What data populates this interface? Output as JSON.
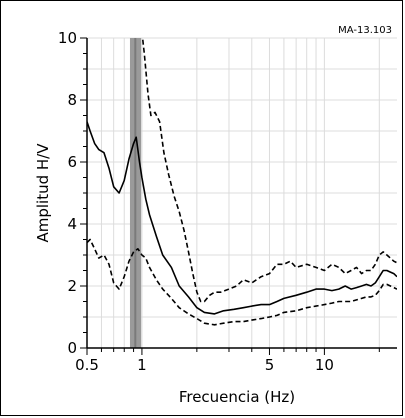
{
  "chart_data": {
    "type": "line",
    "station_label": "MA-13.103",
    "xlabel": "Frecuencia (Hz)",
    "ylabel": "Amplitud H/V",
    "xscale": "log",
    "xlim": [
      0.5,
      25
    ],
    "ylim": [
      0,
      10
    ],
    "x_ticks": [
      {
        "value": 0.5,
        "label": "0.5"
      },
      {
        "value": 1,
        "label": "1"
      },
      {
        "value": 5,
        "label": "5"
      },
      {
        "value": 10,
        "label": "10"
      }
    ],
    "y_ticks": [
      {
        "value": 0,
        "label": "0"
      },
      {
        "value": 2,
        "label": "2"
      },
      {
        "value": 4,
        "label": "4"
      },
      {
        "value": 6,
        "label": "6"
      },
      {
        "value": 8,
        "label": "8"
      },
      {
        "value": 10,
        "label": "10"
      }
    ],
    "grid": true,
    "peak_band": {
      "x_center": 0.92,
      "x_min": 0.86,
      "x_max": 0.99
    },
    "colors": {
      "mean": "#000000",
      "std": "#000000",
      "band": "#9a9a9a",
      "band_center": "#7a7a7a",
      "grid": "#dcdcdc"
    },
    "series": [
      {
        "style": "solid",
        "x": [
          0.5,
          0.52,
          0.55,
          0.58,
          0.62,
          0.66,
          0.7,
          0.75,
          0.8,
          0.85,
          0.9,
          0.93,
          0.97,
          1.0,
          1.05,
          1.1,
          1.2,
          1.3,
          1.45,
          1.6,
          1.8,
          2.0,
          2.2,
          2.5,
          2.8,
          3.2,
          3.6,
          4.0,
          4.5,
          5.0,
          5.5,
          6.0,
          7.0,
          8.0,
          9.0,
          10,
          11,
          12,
          13,
          14,
          15,
          16,
          17,
          18,
          19,
          20,
          21,
          22,
          23,
          24,
          25
        ],
        "y": [
          7.3,
          7.0,
          6.6,
          6.4,
          6.3,
          5.8,
          5.2,
          5.0,
          5.4,
          6.1,
          6.6,
          6.8,
          6.0,
          5.5,
          4.8,
          4.3,
          3.6,
          3.0,
          2.6,
          2.0,
          1.65,
          1.3,
          1.15,
          1.1,
          1.2,
          1.25,
          1.3,
          1.35,
          1.4,
          1.4,
          1.5,
          1.6,
          1.7,
          1.8,
          1.9,
          1.9,
          1.85,
          1.9,
          2.0,
          1.9,
          1.95,
          2.0,
          2.05,
          2.0,
          2.1,
          2.3,
          2.5,
          2.5,
          2.45,
          2.4,
          2.3
        ]
      },
      {
        "style": "dashed",
        "x": [
          1.0,
          1.03,
          1.08,
          1.12,
          1.18,
          1.25,
          1.32,
          1.4,
          1.5,
          1.6,
          1.7,
          1.8,
          1.9,
          2.0,
          2.1,
          2.2,
          2.35,
          2.5,
          2.7,
          3.0,
          3.3,
          3.6,
          4.0,
          4.5,
          5.0,
          5.5,
          6.0,
          6.5,
          7.0,
          8.0,
          9.0,
          10,
          11,
          12,
          13,
          14,
          15,
          16,
          17,
          18,
          19,
          20,
          21,
          22,
          23,
          24,
          25
        ],
        "y": [
          10.2,
          9.5,
          8.2,
          7.5,
          7.6,
          7.3,
          6.3,
          5.6,
          4.9,
          4.4,
          3.8,
          3.1,
          2.4,
          1.8,
          1.5,
          1.5,
          1.7,
          1.8,
          1.8,
          1.9,
          2.0,
          2.2,
          2.1,
          2.3,
          2.4,
          2.7,
          2.7,
          2.8,
          2.6,
          2.7,
          2.6,
          2.5,
          2.7,
          2.6,
          2.4,
          2.5,
          2.6,
          2.4,
          2.5,
          2.5,
          2.7,
          3.0,
          3.1,
          3.0,
          2.9,
          2.8,
          2.75
        ]
      },
      {
        "style": "dashed",
        "x": [
          0.5,
          0.52,
          0.55,
          0.58,
          0.62,
          0.66,
          0.7,
          0.75,
          0.8,
          0.85,
          0.9,
          0.95,
          1.0,
          1.05,
          1.1,
          1.2,
          1.3,
          1.45,
          1.6,
          1.8,
          2.0,
          2.2,
          2.5,
          2.8,
          3.2,
          3.6,
          4.0,
          4.5,
          5.0,
          5.5,
          6.0,
          7.0,
          8.0,
          9.0,
          10,
          11,
          12,
          13,
          14,
          15,
          16,
          17,
          18,
          19,
          20,
          21,
          22,
          23,
          24,
          25
        ],
        "y": [
          3.4,
          3.5,
          3.2,
          2.9,
          3.0,
          2.7,
          2.1,
          1.9,
          2.3,
          2.8,
          3.1,
          3.2,
          3.0,
          2.9,
          2.6,
          2.2,
          1.9,
          1.6,
          1.3,
          1.1,
          0.95,
          0.8,
          0.75,
          0.8,
          0.85,
          0.85,
          0.9,
          0.95,
          1.0,
          1.05,
          1.15,
          1.2,
          1.3,
          1.35,
          1.4,
          1.45,
          1.5,
          1.5,
          1.5,
          1.55,
          1.6,
          1.65,
          1.65,
          1.7,
          1.85,
          2.05,
          2.05,
          2.0,
          1.95,
          1.9
        ]
      }
    ]
  }
}
